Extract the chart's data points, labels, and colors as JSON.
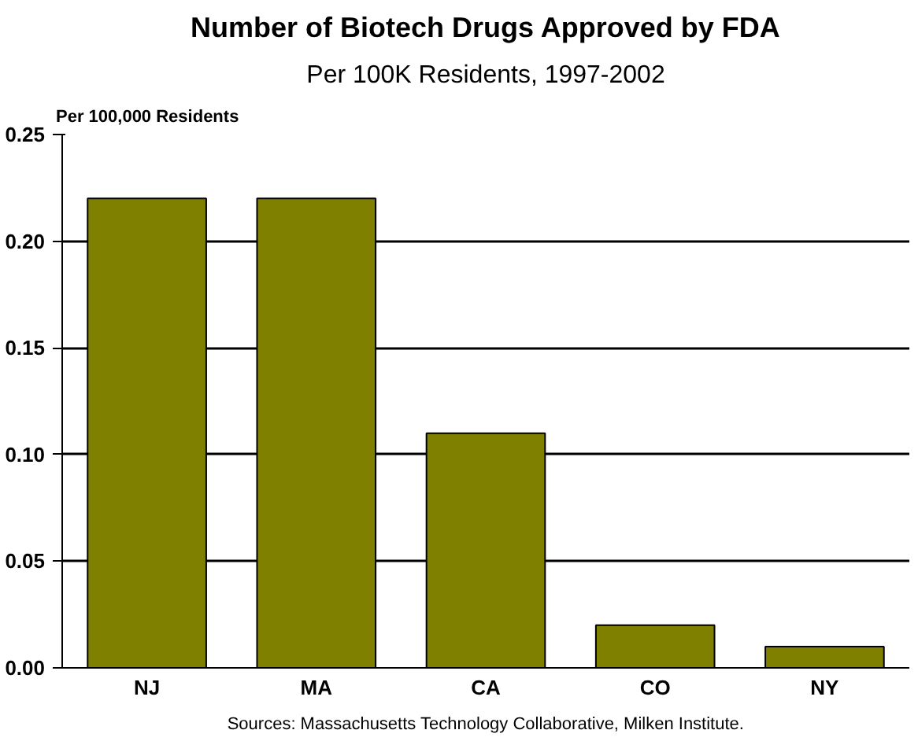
{
  "chart_data": {
    "type": "bar",
    "title": "Number of Biotech Drugs Approved by FDA",
    "subtitle": "Per 100K Residents, 1997-2002",
    "ylabel": "Per 100,000 Residents",
    "categories": [
      "NJ",
      "MA",
      "CA",
      "CO",
      "NY"
    ],
    "values": [
      0.22,
      0.22,
      0.11,
      0.02,
      0.01
    ],
    "color": "#808000",
    "ylim": [
      0,
      0.25
    ],
    "yticks": [
      {
        "value": 0,
        "label": "0.00"
      },
      {
        "value": 0.05,
        "label": "0.05"
      },
      {
        "value": 0.1,
        "label": "0.10"
      },
      {
        "value": 0.15,
        "label": "0.15"
      },
      {
        "value": 0.2,
        "label": "0.20"
      },
      {
        "value": 0.25,
        "label": "0.25"
      }
    ],
    "grid": "y",
    "annotations": [
      "Sources: Massachusetts Technology Collaborative, Milken Institute."
    ]
  }
}
